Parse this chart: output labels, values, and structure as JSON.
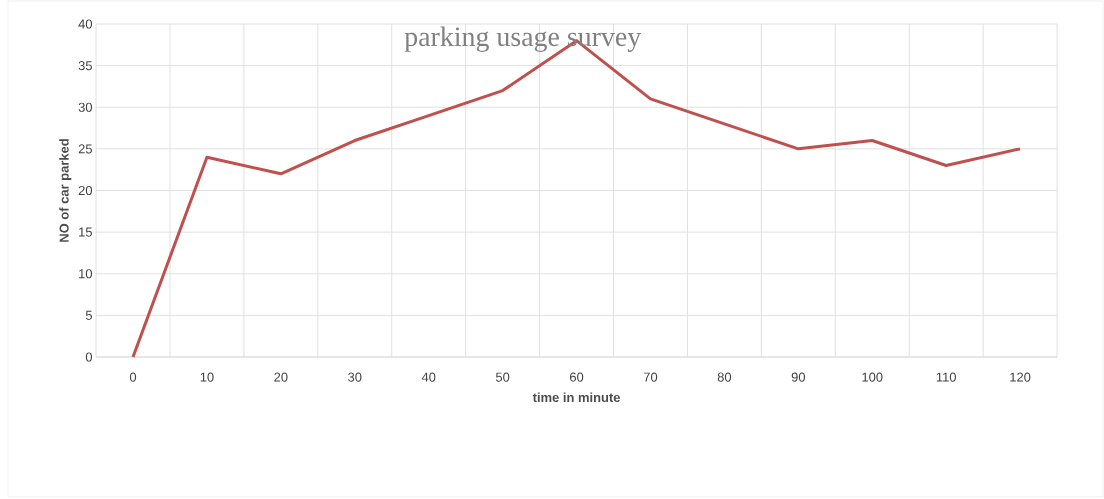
{
  "chart_data": {
    "type": "line",
    "title": "parking usage survey",
    "xlabel": "time in minute",
    "ylabel": "NO of car parked",
    "categories": [
      "0",
      "10",
      "20",
      "30",
      "40",
      "50",
      "60",
      "70",
      "80",
      "90",
      "100",
      "110",
      "120"
    ],
    "series": [
      {
        "color": "#c0504d",
        "values": [
          0,
          24,
          22,
          26,
          29,
          32,
          38,
          31,
          28,
          25,
          26,
          23,
          25
        ]
      }
    ],
    "ylim": [
      0,
      40
    ],
    "yticks": [
      0,
      5,
      10,
      15,
      20,
      25,
      30,
      35,
      40
    ],
    "grid": true,
    "line_style": "solid"
  }
}
